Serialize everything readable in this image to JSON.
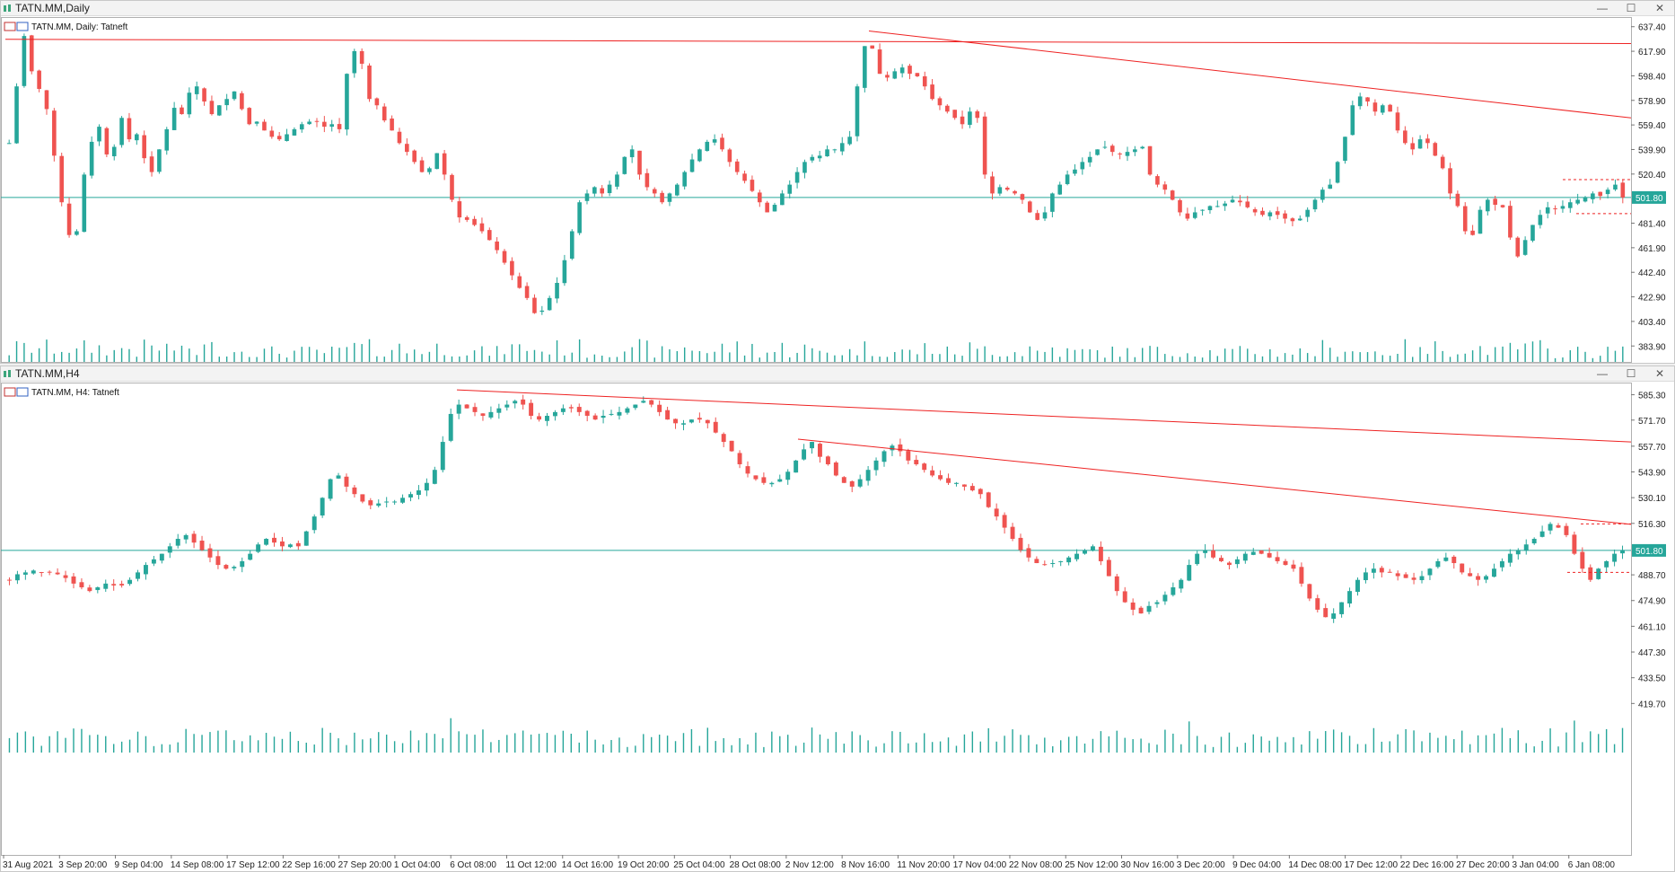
{
  "windows": [
    {
      "title": "TATN.MM,Daily",
      "chart_label": "TATN.MM, Daily:  Tatneft",
      "buttons": {
        "minimize": "—",
        "maximize": "☐",
        "close": "✕"
      },
      "chart_data": {
        "type": "candlestick",
        "symbol": "TATN.MM",
        "timeframe": "Daily",
        "ylim": [
          374.1,
          642.2
        ],
        "y_ticks": [
          637.4,
          617.9,
          598.4,
          578.9,
          559.4,
          539.9,
          520.4,
          501.8,
          481.4,
          461.9,
          442.4,
          422.9,
          403.4,
          383.9
        ],
        "current_price": 501.8,
        "closes": [
          545,
          590,
          630,
          602,
          588,
          572,
          535,
          498,
          472,
          475,
          520,
          546,
          558,
          536,
          542,
          565,
          548,
          552,
          533,
          522,
          540,
          556,
          573,
          568,
          585,
          590,
          578,
          568,
          575,
          580,
          586,
          572,
          560,
          562,
          555,
          550,
          548,
          552,
          556,
          560,
          562,
          562,
          558,
          560,
          556,
          600,
          618,
          608,
          580,
          575,
          563,
          555,
          545,
          538,
          530,
          522,
          525,
          537,
          520,
          500,
          486,
          484,
          480,
          475,
          468,
          460,
          450,
          440,
          430,
          422,
          410,
          412,
          422,
          434,
          452,
          475,
          498,
          505,
          510,
          505,
          512,
          520,
          534,
          540,
          520,
          510,
          505,
          498,
          505,
          512,
          522,
          532,
          540,
          546,
          548,
          540,
          530,
          522,
          515,
          507,
          498,
          490,
          496,
          505,
          512,
          522,
          530,
          534,
          535,
          540,
          540,
          545,
          550,
          590,
          622,
          620,
          600,
          597,
          602,
          605,
          600,
          598,
          590,
          580,
          575,
          570,
          565,
          560,
          570,
          565,
          520,
          505,
          510,
          508,
          505,
          500,
          490,
          484,
          490,
          505,
          512,
          520,
          524,
          530,
          534,
          540,
          542,
          538,
          536,
          538,
          540,
          542,
          520,
          512,
          508,
          500,
          490,
          485,
          490,
          492,
          495,
          495,
          497,
          500,
          498,
          494,
          490,
          488,
          490,
          488,
          485,
          483,
          485,
          492,
          500,
          508,
          512,
          530,
          550,
          575,
          582,
          578,
          570,
          575,
          570,
          555,
          545,
          540,
          548,
          545,
          535,
          525,
          505,
          495,
          475,
          472,
          492,
          500,
          496,
          494,
          470,
          455,
          468,
          480,
          488,
          494,
          493,
          495,
          498,
          500,
          502,
          505,
          503,
          508,
          512,
          501.8
        ]
      }
    },
    {
      "title": "TATN.MM,H4",
      "chart_label": "TATN.MM, H4:  Tatneft",
      "buttons": {
        "minimize": "—",
        "maximize": "☐",
        "close": "✕"
      },
      "chart_data": {
        "type": "candlestick",
        "symbol": "TATN.MM",
        "timeframe": "H4",
        "ylim": [
          413.6,
          589.9
        ],
        "y_ticks": [
          585.3,
          571.7,
          557.7,
          543.9,
          530.1,
          516.3,
          501.8,
          488.7,
          474.9,
          461.1,
          447.3,
          433.5,
          419.7
        ],
        "current_price": 501.8,
        "x_tick_labels": [
          "31 Aug 2021",
          "3 Sep 20:00",
          "9 Sep 04:00",
          "14 Sep 08:00",
          "17 Sep 12:00",
          "22 Sep 16:00",
          "27 Sep 20:00",
          "1 Oct 04:00",
          "6 Oct 08:00",
          "11 Oct 12:00",
          "14 Oct 16:00",
          "19 Oct 20:00",
          "25 Oct 04:00",
          "28 Oct 08:00",
          "2 Nov 12:00",
          "8 Nov 16:00",
          "11 Nov 20:00",
          "17 Nov 04:00",
          "22 Nov 08:00",
          "25 Nov 12:00",
          "30 Nov 16:00",
          "3 Dec 20:00",
          "9 Dec 04:00",
          "14 Dec 08:00",
          "17 Dec 12:00",
          "22 Dec 16:00",
          "27 Dec 20:00",
          "3 Jan 04:00",
          "6 Jan 08:00"
        ],
        "closes": [
          486,
          489,
          490,
          491,
          490,
          490,
          489,
          487,
          484,
          482,
          480,
          482,
          484,
          483,
          483,
          486,
          490,
          494,
          497,
          500,
          504,
          508,
          510,
          506,
          502,
          498,
          494,
          492,
          493,
          496,
          500,
          505,
          508,
          506,
          504,
          505,
          504,
          512,
          520,
          530,
          540,
          542,
          536,
          532,
          528,
          526,
          527,
          528,
          528,
          530,
          532,
          534,
          538,
          545,
          560,
          575,
          580,
          578,
          576,
          574,
          576,
          578,
          580,
          582,
          580,
          574,
          572,
          574,
          576,
          578,
          578,
          576,
          574,
          572,
          574,
          575,
          576,
          578,
          580,
          582,
          580,
          576,
          572,
          570,
          570,
          572,
          572,
          570,
          565,
          560,
          555,
          548,
          543,
          540,
          538,
          538,
          540,
          544,
          550,
          556,
          560,
          552,
          548,
          542,
          538,
          536,
          540,
          545,
          550,
          555,
          558,
          555,
          550,
          548,
          545,
          542,
          540,
          538,
          538,
          536,
          534,
          532,
          525,
          520,
          514,
          508,
          502,
          498,
          495,
          494,
          495,
          496,
          498,
          500,
          502,
          504,
          496,
          488,
          480,
          474,
          470,
          468,
          472,
          474,
          478,
          482,
          486,
          494,
          500,
          502,
          498,
          496,
          494,
          497,
          500,
          501,
          500,
          498,
          496,
          494,
          492,
          484,
          476,
          470,
          466,
          468,
          474,
          480,
          486,
          490,
          492,
          490,
          490,
          488,
          487,
          486,
          488,
          492,
          496,
          498,
          495,
          490,
          488,
          486,
          488,
          492,
          496,
          500,
          502,
          505,
          508,
          512,
          516,
          514,
          510,
          500,
          492,
          486,
          492,
          496,
          500,
          501.8
        ]
      }
    }
  ]
}
